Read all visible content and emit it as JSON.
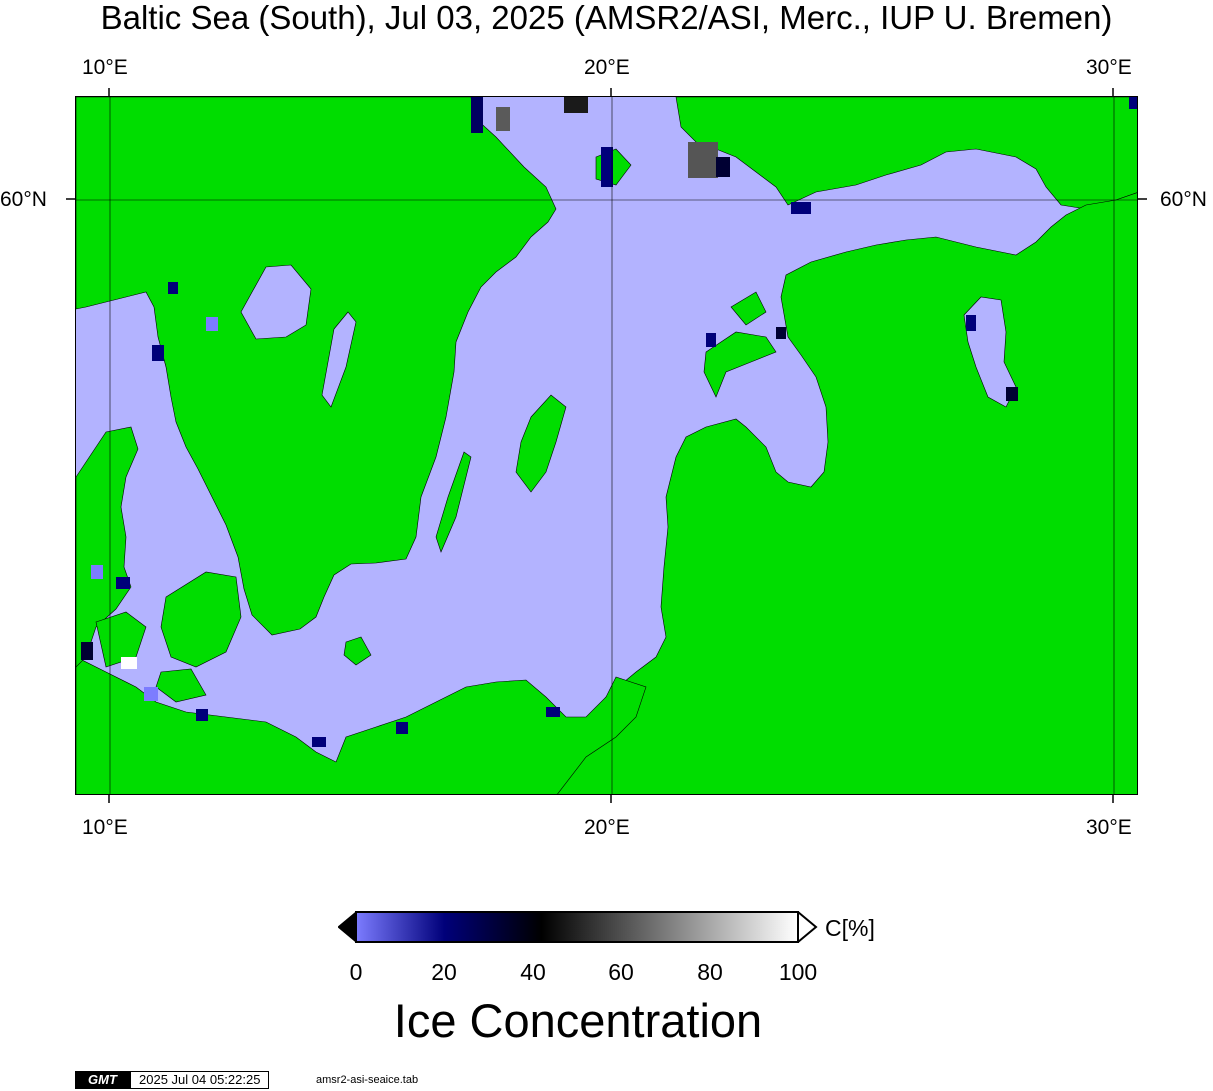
{
  "title": "Baltic Sea (South), Jul 03, 2025 (AMSR2/ASI, Merc., IUP U. Bremen)",
  "axes": {
    "top_labels": [
      "10°E",
      "20°E",
      "30°E"
    ],
    "bottom_labels": [
      "10°E",
      "20°E",
      "30°E"
    ],
    "left_labels": [
      "60°N"
    ],
    "right_labels": [
      "60°N"
    ],
    "longitudes": [
      10,
      20,
      30
    ],
    "latitudes": [
      60
    ]
  },
  "map": {
    "projection": "Mercator",
    "land_color": "#00dd00",
    "water_color": "#b3b3ff",
    "gridline_color": "#000000"
  },
  "colorbar": {
    "title": "Ice Concentration",
    "unit_label": "C[%]",
    "ticks": [
      "0",
      "20",
      "40",
      "60",
      "80",
      "100"
    ],
    "range": [
      0,
      100
    ],
    "stops": [
      "#7c7cff",
      "#00007a",
      "#000000",
      "#ffffff"
    ]
  },
  "footer": {
    "logo": "GMT",
    "timestamp": "2025 Jul 04 05:22:25",
    "filename": "amsr2-asi-seaice.tab"
  }
}
